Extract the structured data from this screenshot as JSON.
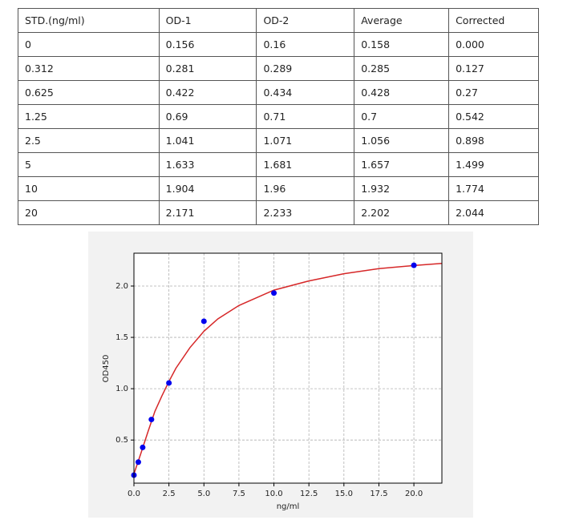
{
  "table": {
    "header": [
      "STD.(ng/ml)",
      "OD-1",
      "OD-2",
      "Average",
      "Corrected"
    ],
    "rows": [
      [
        "0",
        "0.156",
        "0.16",
        "0.158",
        "0.000"
      ],
      [
        "0.312",
        "0.281",
        "0.289",
        "0.285",
        "0.127"
      ],
      [
        "0.625",
        "0.422",
        "0.434",
        "0.428",
        "0.27"
      ],
      [
        "1.25",
        "0.69",
        "0.71",
        "0.7",
        "0.542"
      ],
      [
        "2.5",
        "1.041",
        "1.071",
        "1.056",
        "0.898"
      ],
      [
        "5",
        "1.633",
        "1.681",
        "1.657",
        "1.499"
      ],
      [
        "10",
        "1.904",
        "1.96",
        "1.932",
        "1.774"
      ],
      [
        "20",
        "2.171",
        "2.233",
        "2.202",
        "2.044"
      ]
    ]
  },
  "chart_data": {
    "type": "scatter",
    "xlabel": "ng/ml",
    "ylabel": "OD450",
    "points": {
      "color": "#0000ee",
      "x": [
        0,
        0.312,
        0.625,
        1.25,
        2.5,
        5,
        10,
        20
      ],
      "y": [
        0.158,
        0.285,
        0.428,
        0.7,
        1.056,
        1.657,
        1.932,
        2.202
      ]
    },
    "curve": {
      "color": "#d62728",
      "x": [
        0,
        0.5,
        1,
        1.5,
        2,
        2.5,
        3,
        4,
        5,
        6,
        7.5,
        10,
        12.5,
        15,
        17.5,
        20,
        22
      ],
      "y": [
        0.17,
        0.37,
        0.58,
        0.78,
        0.93,
        1.07,
        1.2,
        1.4,
        1.56,
        1.68,
        1.81,
        1.96,
        2.05,
        2.12,
        2.17,
        2.2,
        2.22
      ]
    },
    "xlim": [
      0,
      22
    ],
    "ylim": [
      0.08,
      2.32
    ],
    "xticks": [
      {
        "value": 0,
        "label": "0.0"
      },
      {
        "value": 2.5,
        "label": "2.5"
      },
      {
        "value": 5,
        "label": "5.0"
      },
      {
        "value": 7.5,
        "label": "7.5"
      },
      {
        "value": 10,
        "label": "10.0"
      },
      {
        "value": 12.5,
        "label": "12.5"
      },
      {
        "value": 15,
        "label": "15.0"
      },
      {
        "value": 17.5,
        "label": "17.5"
      },
      {
        "value": 20,
        "label": "20.0"
      }
    ],
    "yticks": [
      0.5,
      {
        "value": 1,
        "label": "1.0"
      },
      1.5,
      {
        "value": 2,
        "label": "2.0"
      }
    ],
    "grid": true
  }
}
